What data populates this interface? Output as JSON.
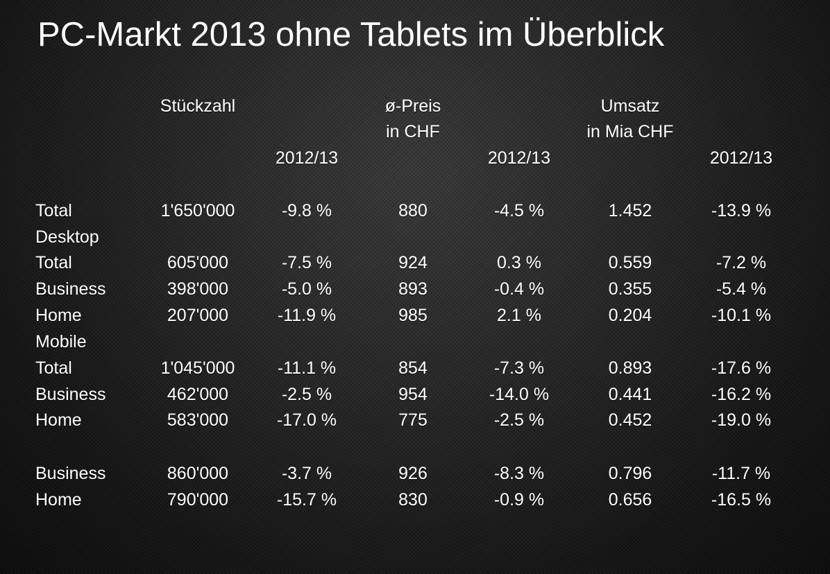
{
  "title": "PC-Markt 2013 ohne Tablets im Überblick",
  "headers": {
    "stueckzahl": "Stückzahl",
    "preis_line1": "ø-Preis",
    "preis_line2": "in CHF",
    "umsatz_line1": "Umsatz",
    "umsatz_line2": "in Mia CHF",
    "change1": "2012/13",
    "change2": "2012/13",
    "change3": "2012/13"
  },
  "rows": [
    {
      "label": "Total",
      "units": "1'650'000",
      "units_change": "-9.8 %",
      "price": "880",
      "price_change": "-4.5 %",
      "revenue": "1.452",
      "revenue_change": "-13.9 %"
    },
    {
      "label": "Desktop"
    },
    {
      "label": "Total",
      "units": "605'000",
      "units_change": "-7.5 %",
      "price": "924",
      "price_change": "0.3 %",
      "revenue": "0.559",
      "revenue_change": "-7.2 %"
    },
    {
      "label": "Business",
      "units": "398'000",
      "units_change": "-5.0 %",
      "price": "893",
      "price_change": "-0.4 %",
      "revenue": "0.355",
      "revenue_change": "-5.4 %"
    },
    {
      "label": "Home",
      "units": "207'000",
      "units_change": "-11.9 %",
      "price": "985",
      "price_change": "2.1 %",
      "revenue": "0.204",
      "revenue_change": "-10.1 %"
    },
    {
      "label": "Mobile"
    },
    {
      "label": "Total",
      "units": "1'045'000",
      "units_change": "-11.1 %",
      "price": "854",
      "price_change": "-7.3 %",
      "revenue": "0.893",
      "revenue_change": "-17.6 %"
    },
    {
      "label": "Business",
      "units": "462'000",
      "units_change": "-2.5 %",
      "price": "954",
      "price_change": "-14.0 %",
      "revenue": "0.441",
      "revenue_change": "-16.2 %"
    },
    {
      "label": "Home",
      "units": "583'000",
      "units_change": "-17.0 %",
      "price": "775",
      "price_change": "-2.5 %",
      "revenue": "0.452",
      "revenue_change": "-19.0 %"
    },
    {
      "label": "Business",
      "units": "860'000",
      "units_change": "-3.7 %",
      "price": "926",
      "price_change": "-8.3 %",
      "revenue": "0.796",
      "revenue_change": "-11.7 %"
    },
    {
      "label": "Home",
      "units": "790'000",
      "units_change": "-15.7 %",
      "price": "830",
      "price_change": "-0.9 %",
      "revenue": "0.656",
      "revenue_change": "-16.5 %"
    }
  ]
}
